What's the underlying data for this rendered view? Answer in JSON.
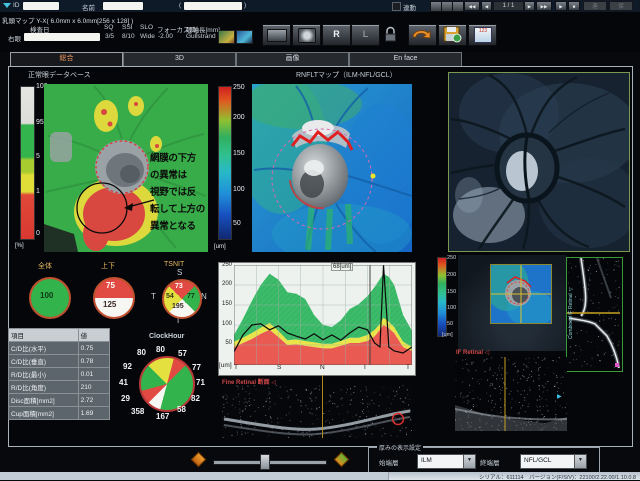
{
  "titlebar": {
    "id_label": "ID",
    "name_label": "名前",
    "lparen": "(",
    "rparen": ")"
  },
  "header": {
    "scan_title": "乳頭マップ Y-X( 6.0mm x 6.0mm[256 x 128] )",
    "exam_date_label": "検査日",
    "eye_label": "右眼",
    "metrics": [
      {
        "label": "SQ",
        "value": "3/5"
      },
      {
        "label": "SSI",
        "value": "8/10"
      },
      {
        "label": "SLO",
        "value": "Wide"
      },
      {
        "label": "フォーカス[D]",
        "value": "-2.00"
      },
      {
        "label": "眼軸長[mm]",
        "value": "Gullstrand"
      }
    ],
    "linked_label": "連動",
    "page_indicator": "1 / 1",
    "button_a": "連携",
    "button_b": "保存",
    "right_eye_btn": "R",
    "left_eye_btn": "L",
    "report_icon_label": "123"
  },
  "icons": {
    "first": "◀◀",
    "prev": "◀",
    "next": "▶",
    "last": "▶▶",
    "play": "▶",
    "stop": "■",
    "dropdown": "▼"
  },
  "tabs": [
    {
      "label": "総合",
      "active": true
    },
    {
      "label": "3D",
      "active": false
    },
    {
      "label": "画像",
      "active": false
    },
    {
      "label": "En face",
      "active": false
    }
  ],
  "normative_panel": {
    "title": "正常眼データベース",
    "scale": {
      "labels": [
        "100",
        "95",
        "5",
        "1",
        "0"
      ],
      "unit": "[%]"
    },
    "annotation": [
      "網膜の下方",
      "の異常は",
      "視野では反",
      "転して上方の",
      "異常となる"
    ]
  },
  "rnfl_panel": {
    "title": "RNFLTマップ（ILM-NFL/GCL）",
    "scale": {
      "labels": [
        "250",
        "200",
        "150",
        "100",
        "50"
      ],
      "unit": "[um]"
    }
  },
  "summary": {
    "overall": {
      "label": "全体",
      "value": "100",
      "color": "#33b34c"
    },
    "updown": {
      "label": "上下",
      "top_value": "75",
      "top_color": "#e04a42",
      "bottom_value": "125",
      "bottom_color": "#f6f6f2"
    },
    "tsnit": {
      "label": "TSNIT",
      "s_label": "S",
      "t_label": "T",
      "n_label": "N",
      "i_label": "I",
      "s": {
        "value": "73",
        "color": "#e04a42"
      },
      "t": {
        "value": "54",
        "color": "#e4e040"
      },
      "n": {
        "value": "77",
        "color": "#33b34c"
      },
      "i": {
        "value": "195",
        "color": "#f6f6f2"
      }
    }
  },
  "table": {
    "headers": [
      "項目",
      "値"
    ],
    "rows": [
      [
        "C/D比(水平)",
        "0.75"
      ],
      [
        "C/D比(垂直)",
        "0.78"
      ],
      [
        "R/D比(最小)",
        "0.01"
      ],
      [
        "R/D比(角度)",
        "210"
      ],
      [
        "Disc面積[mm2]",
        "2.72"
      ],
      [
        "Cup面積[mm2]",
        "1.69"
      ]
    ]
  },
  "chart_data": [
    {
      "id": "clock_hour",
      "type": "pie",
      "title": "ClockHour",
      "note": "12 sectors clockwise starting at 12 o'clock",
      "values": [
        80,
        57,
        77,
        71,
        82,
        58,
        167,
        358,
        29,
        41,
        92,
        80
      ],
      "colors": [
        "#e4e040",
        "#e04a42",
        "#33b34c",
        "#33b34c",
        "#33b34c",
        "#33b34c",
        "#33b34c",
        "#f6f6f2",
        "#e04a42",
        "#33b34c",
        "#33b34c",
        "#e4e040"
      ]
    },
    {
      "id": "tsnit_profile",
      "type": "area",
      "title": "TSNIT RNFL thickness profile",
      "ylabel": "[um]",
      "ylim": [
        0,
        250
      ],
      "yticks": [
        250,
        200,
        150,
        100,
        50
      ],
      "xticks": [
        "T",
        "S",
        "N",
        "I",
        "T"
      ],
      "cursor_label": "68[um]",
      "cursor_x_percent": 76.4,
      "grid": true,
      "legend": "none",
      "x_percent": [
        0,
        5,
        10,
        15,
        20,
        25,
        30,
        35,
        40,
        45,
        50,
        55,
        60,
        65,
        70,
        75,
        79,
        82,
        84,
        87,
        90,
        95,
        100
      ],
      "bands": {
        "green_top": [
          75,
          115,
          160,
          200,
          228,
          213,
          182,
          178,
          165,
          125,
          100,
          95,
          112,
          140,
          152,
          172,
          195,
          215,
          228,
          220,
          200,
          125,
          85
        ],
        "yellow_top": [
          58,
          68,
          80,
          93,
          105,
          85,
          62,
          64,
          60,
          57,
          53,
          53,
          60,
          68,
          68,
          75,
          88,
          103,
          118,
          108,
          95,
          58,
          45
        ],
        "red_top": [
          45,
          55,
          65,
          78,
          88,
          70,
          50,
          52,
          48,
          45,
          42,
          42,
          48,
          55,
          55,
          60,
          72,
          88,
          100,
          92,
          80,
          45,
          35
        ]
      },
      "patient_um": [
        33,
        75,
        100,
        103,
        88,
        98,
        80,
        72,
        65,
        78,
        63,
        75,
        62,
        80,
        95,
        88,
        55,
        45,
        250,
        45,
        35,
        30,
        45
      ],
      "band_colors": {
        "green": "#3cbc6a",
        "yellow": "#e8e44a",
        "red": "#e85a52"
      }
    }
  ],
  "oct": {
    "scale": {
      "labels": [
        "250",
        "200",
        "150",
        "100",
        "50"
      ],
      "unit": "[um]"
    },
    "fine_retinal_label": "Fine Retinal 断面 ◁",
    "if_retinal_label": "IF Retinal ◁",
    "combined_label": "Combined IF Retinal ◁"
  },
  "footer": {
    "group_title": "厚みの表示設定",
    "start_layer_label": "始端層",
    "start_layer_value": "ILM",
    "end_layer_label": "終端層",
    "end_layer_value": "NFL/GCL",
    "status_text": "シリアル：611114　バージョン(F/S/V)：22100/2.22.00/1.10.0.8"
  }
}
